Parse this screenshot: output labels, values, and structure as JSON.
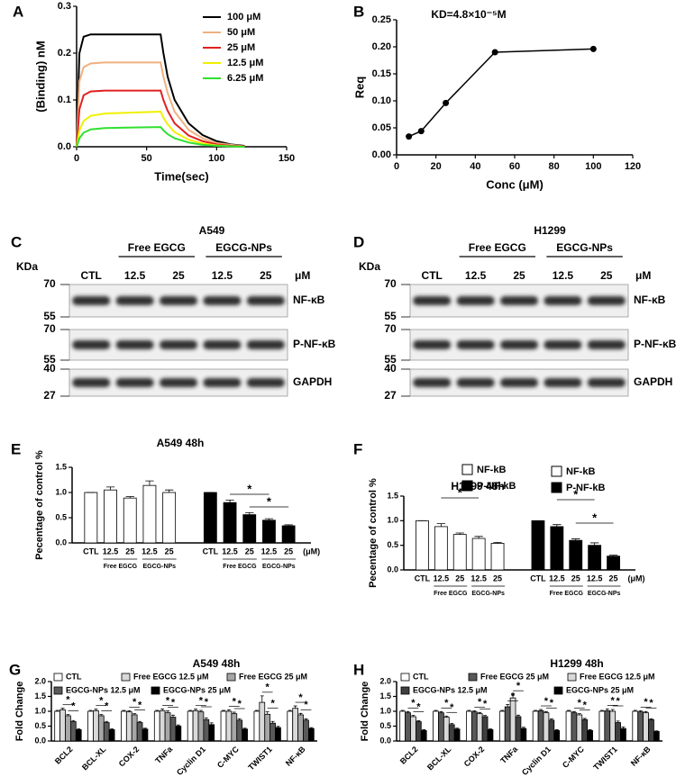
{
  "chart_data": [
    {
      "type": "line",
      "label": "A",
      "xlabel": "Time(sec)",
      "ylabel": "(Binding) nM",
      "x": [
        0,
        2,
        5,
        10,
        20,
        40,
        60,
        62,
        65,
        70,
        80,
        90,
        100,
        110,
        120
      ],
      "series": [
        {
          "name": "100 μM",
          "color": "#000000",
          "values": [
            0,
            0.2,
            0.235,
            0.24,
            0.24,
            0.24,
            0.24,
            0.2,
            0.15,
            0.1,
            0.05,
            0.025,
            0.012,
            0.005,
            0.002
          ]
        },
        {
          "name": "50 μM",
          "color": "#f0b080",
          "values": [
            0,
            0.14,
            0.17,
            0.178,
            0.18,
            0.18,
            0.18,
            0.15,
            0.115,
            0.075,
            0.036,
            0.018,
            0.008,
            0.004,
            0.001
          ]
        },
        {
          "name": "25 μM",
          "color": "#e02020",
          "values": [
            0,
            0.08,
            0.11,
            0.118,
            0.12,
            0.12,
            0.12,
            0.1,
            0.077,
            0.05,
            0.024,
            0.012,
            0.005,
            0.002,
            0.001
          ]
        },
        {
          "name": "12.5 μM",
          "color": "#f0f000",
          "values": [
            0,
            0.035,
            0.055,
            0.066,
            0.071,
            0.073,
            0.075,
            0.062,
            0.048,
            0.031,
            0.015,
            0.007,
            0.003,
            0.001,
            0
          ]
        },
        {
          "name": "6.25 μM",
          "color": "#30e030",
          "values": [
            0,
            0.018,
            0.03,
            0.037,
            0.04,
            0.041,
            0.042,
            0.035,
            0.027,
            0.018,
            0.009,
            0.004,
            0.002,
            0.001,
            0
          ]
        }
      ],
      "xlim": [
        0,
        150
      ],
      "xticks": [
        0,
        50,
        100,
        150
      ],
      "ylim": [
        0,
        0.3
      ],
      "yticks": [
        {
          "value": 0,
          "label": "0.0"
        },
        0.1,
        0.2,
        0.3
      ]
    },
    {
      "type": "scatter_line",
      "label": "B",
      "title": "KD=4.8×10⁻⁵M",
      "xlabel": "Conc (μM)",
      "ylabel": "Req",
      "color": "#000000",
      "x": [
        6.25,
        12.5,
        25,
        50,
        100
      ],
      "values": [
        0.034,
        0.044,
        0.096,
        0.19,
        0.196
      ],
      "xlim": [
        0,
        120
      ],
      "xticks": [
        0,
        20,
        40,
        60,
        80,
        100,
        120
      ],
      "ylim": [
        0,
        0.25
      ],
      "yticks": [
        {
          "value": 0,
          "label": "0.00"
        },
        0.05,
        {
          "value": 0.1,
          "label": "0.10"
        },
        0.15,
        {
          "value": 0.2,
          "label": "0.20"
        },
        0.25
      ]
    },
    {
      "type": "bar",
      "label": "E",
      "title": "A549 48h",
      "ylabel": "Pecentage of control %",
      "categories": [
        "CTL",
        "12.5",
        "25",
        "12.5",
        "25"
      ],
      "groups": [
        "Free EGCG",
        "EGCG-NPs"
      ],
      "unit": "(μM)",
      "significance": "*",
      "series": [
        {
          "name": "NF-kB",
          "color": "#ffffff",
          "values": [
            1.0,
            1.05,
            0.89,
            1.14,
            1.0
          ],
          "errors": [
            0,
            0.06,
            0.03,
            0.09,
            0.05
          ]
        },
        {
          "name": "P-NF-kB",
          "color": "#000000",
          "values": [
            1.0,
            0.8,
            0.56,
            0.45,
            0.34
          ],
          "errors": [
            0,
            0.05,
            0.04,
            0.03,
            0.02
          ]
        }
      ],
      "ylim": [
        0,
        1.5
      ],
      "yticks": [
        {
          "value": 0,
          "label": "0.0"
        },
        0.5,
        {
          "value": 1,
          "label": "1.0"
        },
        1.5
      ]
    },
    {
      "type": "bar",
      "label": "F",
      "title": "H1299 48h",
      "ylabel": "Pecentage of control %",
      "categories": [
        "CTL",
        "12.5",
        "25",
        "12.5",
        "25"
      ],
      "groups": [
        "Free EGCG",
        "EGCG-NPs"
      ],
      "unit": "(μM)",
      "significance": "*",
      "series": [
        {
          "name": "NF-kB",
          "color": "#ffffff",
          "values": [
            1.0,
            0.88,
            0.72,
            0.64,
            0.54
          ],
          "errors": [
            0,
            0.06,
            0.03,
            0.04,
            0.02
          ]
        },
        {
          "name": "P-NF-kB",
          "color": "#000000",
          "values": [
            1.0,
            0.88,
            0.6,
            0.5,
            0.28
          ],
          "errors": [
            0,
            0.04,
            0.03,
            0.05,
            0.02
          ]
        }
      ],
      "ylim": [
        0,
        1.5
      ],
      "yticks": [
        {
          "value": 0,
          "label": "0.0"
        },
        0.5,
        {
          "value": 1,
          "label": "1.0"
        },
        1.5
      ]
    },
    {
      "type": "grouped_bar",
      "label": "G",
      "title": "A549 48h",
      "ylabel": "Fold Change",
      "significance": "*",
      "categories": [
        "BCL2",
        "BCL-XL",
        "COX-2",
        "TNFa",
        "Cyclin D1",
        "C-MYC",
        "TWIST1",
        "NF-κB"
      ],
      "series": [
        {
          "name": "CTL",
          "color": "#ffffff",
          "values": [
            1,
            1,
            1,
            1,
            1,
            1,
            1,
            1
          ],
          "errors": [
            0.03,
            0.03,
            0.03,
            0.03,
            0.03,
            0.03,
            0.03,
            0.03
          ]
        },
        {
          "name": "Free EGCG 12.5 μM",
          "color": "#d9d9d9",
          "values": [
            1.05,
            1.02,
            0.98,
            1.02,
            1.02,
            1.0,
            1.3,
            1.1
          ],
          "errors": [
            0.05,
            0.05,
            0.04,
            0.06,
            0.05,
            0.05,
            0.22,
            0.08
          ]
        },
        {
          "name": "Free EGCG 25 μM",
          "color": "#a6a6a6",
          "values": [
            0.85,
            0.85,
            0.88,
            0.95,
            0.98,
            0.92,
            0.9,
            0.88
          ],
          "errors": [
            0.04,
            0.04,
            0.04,
            0.06,
            0.05,
            0.05,
            0.08,
            0.05
          ]
        },
        {
          "name": "EGCG-NPs 12.5 μM",
          "color": "#595959",
          "values": [
            0.65,
            0.62,
            0.62,
            0.8,
            0.72,
            0.7,
            0.6,
            0.7
          ],
          "errors": [
            0.04,
            0.04,
            0.04,
            0.07,
            0.06,
            0.05,
            0.06,
            0.04
          ]
        },
        {
          "name": "EGCG-NPs 25 μM",
          "color": "#000000",
          "values": [
            0.38,
            0.38,
            0.4,
            0.5,
            0.55,
            0.4,
            0.45,
            0.42
          ],
          "errors": [
            0.03,
            0.03,
            0.03,
            0.04,
            0.06,
            0.03,
            0.04,
            0.03
          ]
        }
      ],
      "ylim": [
        0,
        2
      ],
      "yticks": [
        {
          "value": 0,
          "label": "0.0"
        },
        0.5,
        {
          "value": 1,
          "label": "1.0"
        },
        1.5,
        {
          "value": 2,
          "label": "2.0"
        }
      ]
    },
    {
      "type": "grouped_bar",
      "label": "H",
      "title": "H1299 48h",
      "ylabel": "Fold Change",
      "significance": "*",
      "categories": [
        "BCL2",
        "BCL-XL",
        "COX-2",
        "TNFa",
        "Cyclin D1",
        "C-MYC",
        "TWIST1",
        "NF-κB"
      ],
      "series": [
        {
          "name": "CTL",
          "color": "#ffffff",
          "values": [
            1,
            1,
            1,
            1,
            1,
            1,
            1,
            1
          ],
          "errors": [
            0.03,
            0.03,
            0.03,
            0.03,
            0.03,
            0.03,
            0.03,
            0.03
          ]
        },
        {
          "name": "Free EGCG 25 μM",
          "color": "#595959",
          "values": [
            0.95,
            0.95,
            0.98,
            1.15,
            1.02,
            0.95,
            1.02,
            0.98
          ],
          "errors": [
            0.04,
            0.04,
            0.04,
            0.08,
            0.04,
            0.04,
            0.06,
            0.04
          ]
        },
        {
          "name": "Free EGCG 12.5 μM",
          "color": "#d9d9d9",
          "values": [
            0.82,
            0.8,
            0.92,
            1.45,
            0.95,
            0.88,
            1.0,
            0.95
          ],
          "errors": [
            0.04,
            0.04,
            0.04,
            0.12,
            0.04,
            0.04,
            0.06,
            0.04
          ]
        },
        {
          "name": "EGCG-NPs 12.5 μM",
          "color": "#404040",
          "values": [
            0.65,
            0.55,
            0.82,
            0.82,
            0.7,
            0.72,
            0.62,
            0.72
          ],
          "errors": [
            0.03,
            0.04,
            0.04,
            0.05,
            0.04,
            0.04,
            0.05,
            0.03
          ]
        },
        {
          "name": "EGCG-NPs 25 μM",
          "color": "#000000",
          "values": [
            0.35,
            0.4,
            0.38,
            0.42,
            0.35,
            0.35,
            0.42,
            0.32
          ],
          "errors": [
            0.03,
            0.03,
            0.03,
            0.04,
            0.03,
            0.03,
            0.05,
            0.02
          ]
        }
      ],
      "ylim": [
        0,
        2
      ],
      "yticks": [
        {
          "value": 0,
          "label": "0.0"
        },
        0.5,
        {
          "value": 1,
          "label": "1.0"
        },
        1.5,
        {
          "value": 2,
          "label": "2.0"
        }
      ]
    }
  ],
  "blots": [
    {
      "label": "C",
      "title": "A549",
      "kda": "KDa",
      "groups": [
        "Free EGCG",
        "EGCG-NPs"
      ],
      "lanes": [
        "CTL",
        "12.5",
        "25",
        "12.5",
        "25"
      ],
      "unit": "μM",
      "rows": [
        {
          "name": "NF-κB",
          "markers": [
            "70",
            "55"
          ]
        },
        {
          "name": "P-NF-κB",
          "markers": [
            "70",
            "55"
          ]
        },
        {
          "name": "GAPDH",
          "markers": [
            "40",
            "27"
          ]
        }
      ]
    },
    {
      "label": "D",
      "title": "H1299",
      "kda": "KDa",
      "groups": [
        "Free EGCG",
        "EGCG-NPs"
      ],
      "lanes": [
        "CTL",
        "12.5",
        "25",
        "12.5",
        "25"
      ],
      "unit": "μM",
      "rows": [
        {
          "name": "NF-κB",
          "markers": [
            "70",
            "55"
          ]
        },
        {
          "name": "P-NF-κB",
          "markers": [
            "70",
            "55"
          ]
        },
        {
          "name": "GAPDH",
          "markers": [
            "40",
            "27"
          ]
        }
      ]
    }
  ]
}
